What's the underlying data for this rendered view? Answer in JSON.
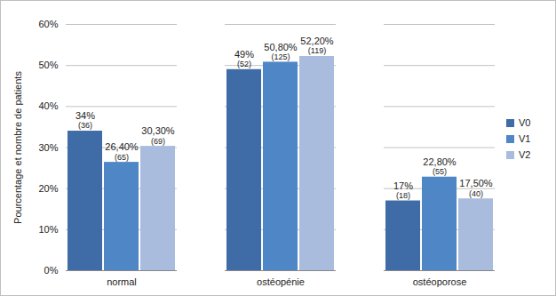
{
  "chart_data": {
    "type": "bar",
    "y_label": "Pourcentage et nombre de patients",
    "categories": [
      "normal",
      "ostéopénie",
      "ostéoporose"
    ],
    "series": [
      {
        "name": "V0",
        "color": "#3f6ba6",
        "values": [
          34,
          49,
          17
        ],
        "value_labels": [
          "34%",
          "49%",
          "17%"
        ],
        "counts": [
          36,
          52,
          18
        ]
      },
      {
        "name": "V1",
        "color": "#4f86c6",
        "values": [
          26.4,
          50.8,
          22.8
        ],
        "value_labels": [
          "26,40%",
          "50,80%",
          "22,80%"
        ],
        "counts": [
          65,
          125,
          55
        ]
      },
      {
        "name": "V2",
        "color": "#a9bcdd",
        "values": [
          30.3,
          52.2,
          17.5
        ],
        "value_labels": [
          "30,30%",
          "52,20%",
          "17,50%"
        ],
        "counts": [
          69,
          119,
          40
        ]
      }
    ],
    "ylim": [
      0,
      60
    ],
    "yticks": [
      {
        "value": 0,
        "label": "0%"
      },
      {
        "value": 10,
        "label": "10%"
      },
      {
        "value": 20,
        "label": "20%"
      },
      {
        "value": 30,
        "label": "30%"
      },
      {
        "value": 40,
        "label": "40%"
      },
      {
        "value": 50,
        "label": "50%"
      },
      {
        "value": 60,
        "label": "60%"
      }
    ],
    "grid": true,
    "legend": "right",
    "data_labels": true
  }
}
